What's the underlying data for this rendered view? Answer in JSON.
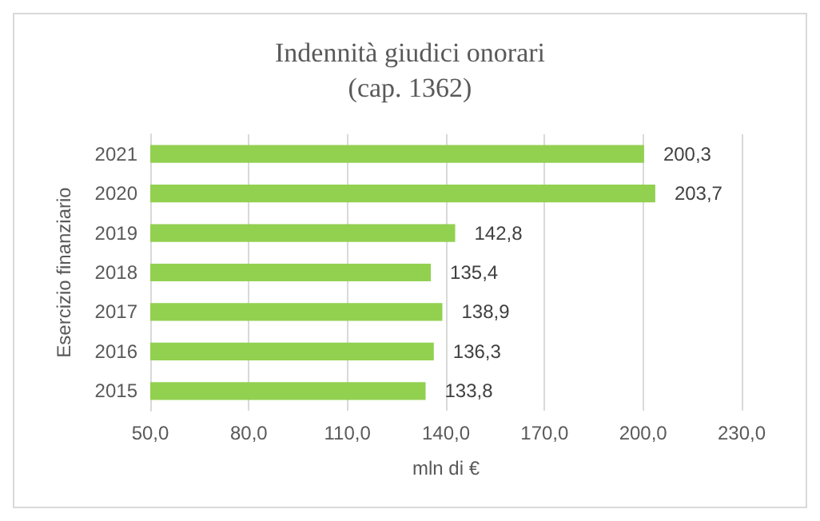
{
  "chart_data": {
    "type": "bar",
    "orientation": "horizontal",
    "title": "Indennità giudici onorari\n(cap. 1362)",
    "xlabel": "mln di €",
    "ylabel": "Esercizio finanziario",
    "categories": [
      "2021",
      "2020",
      "2019",
      "2018",
      "2017",
      "2016",
      "2015"
    ],
    "values": [
      200.3,
      203.7,
      142.8,
      135.4,
      138.9,
      136.3,
      133.8
    ],
    "value_labels": [
      "200,3",
      "203,7",
      "142,8",
      "135,4",
      "138,9",
      "136,3",
      "133,8"
    ],
    "color": "#92d050",
    "xlim": [
      50,
      230
    ],
    "xticks": [
      {
        "value": 50,
        "label": "50,0"
      },
      {
        "value": 80,
        "label": "80,0"
      },
      {
        "value": 110,
        "label": "110,0"
      },
      {
        "value": 140,
        "label": "140,0"
      },
      {
        "value": 170,
        "label": "170,0"
      },
      {
        "value": 200,
        "label": "200,0"
      },
      {
        "value": 230,
        "label": "230,0"
      }
    ],
    "grid": "x"
  }
}
